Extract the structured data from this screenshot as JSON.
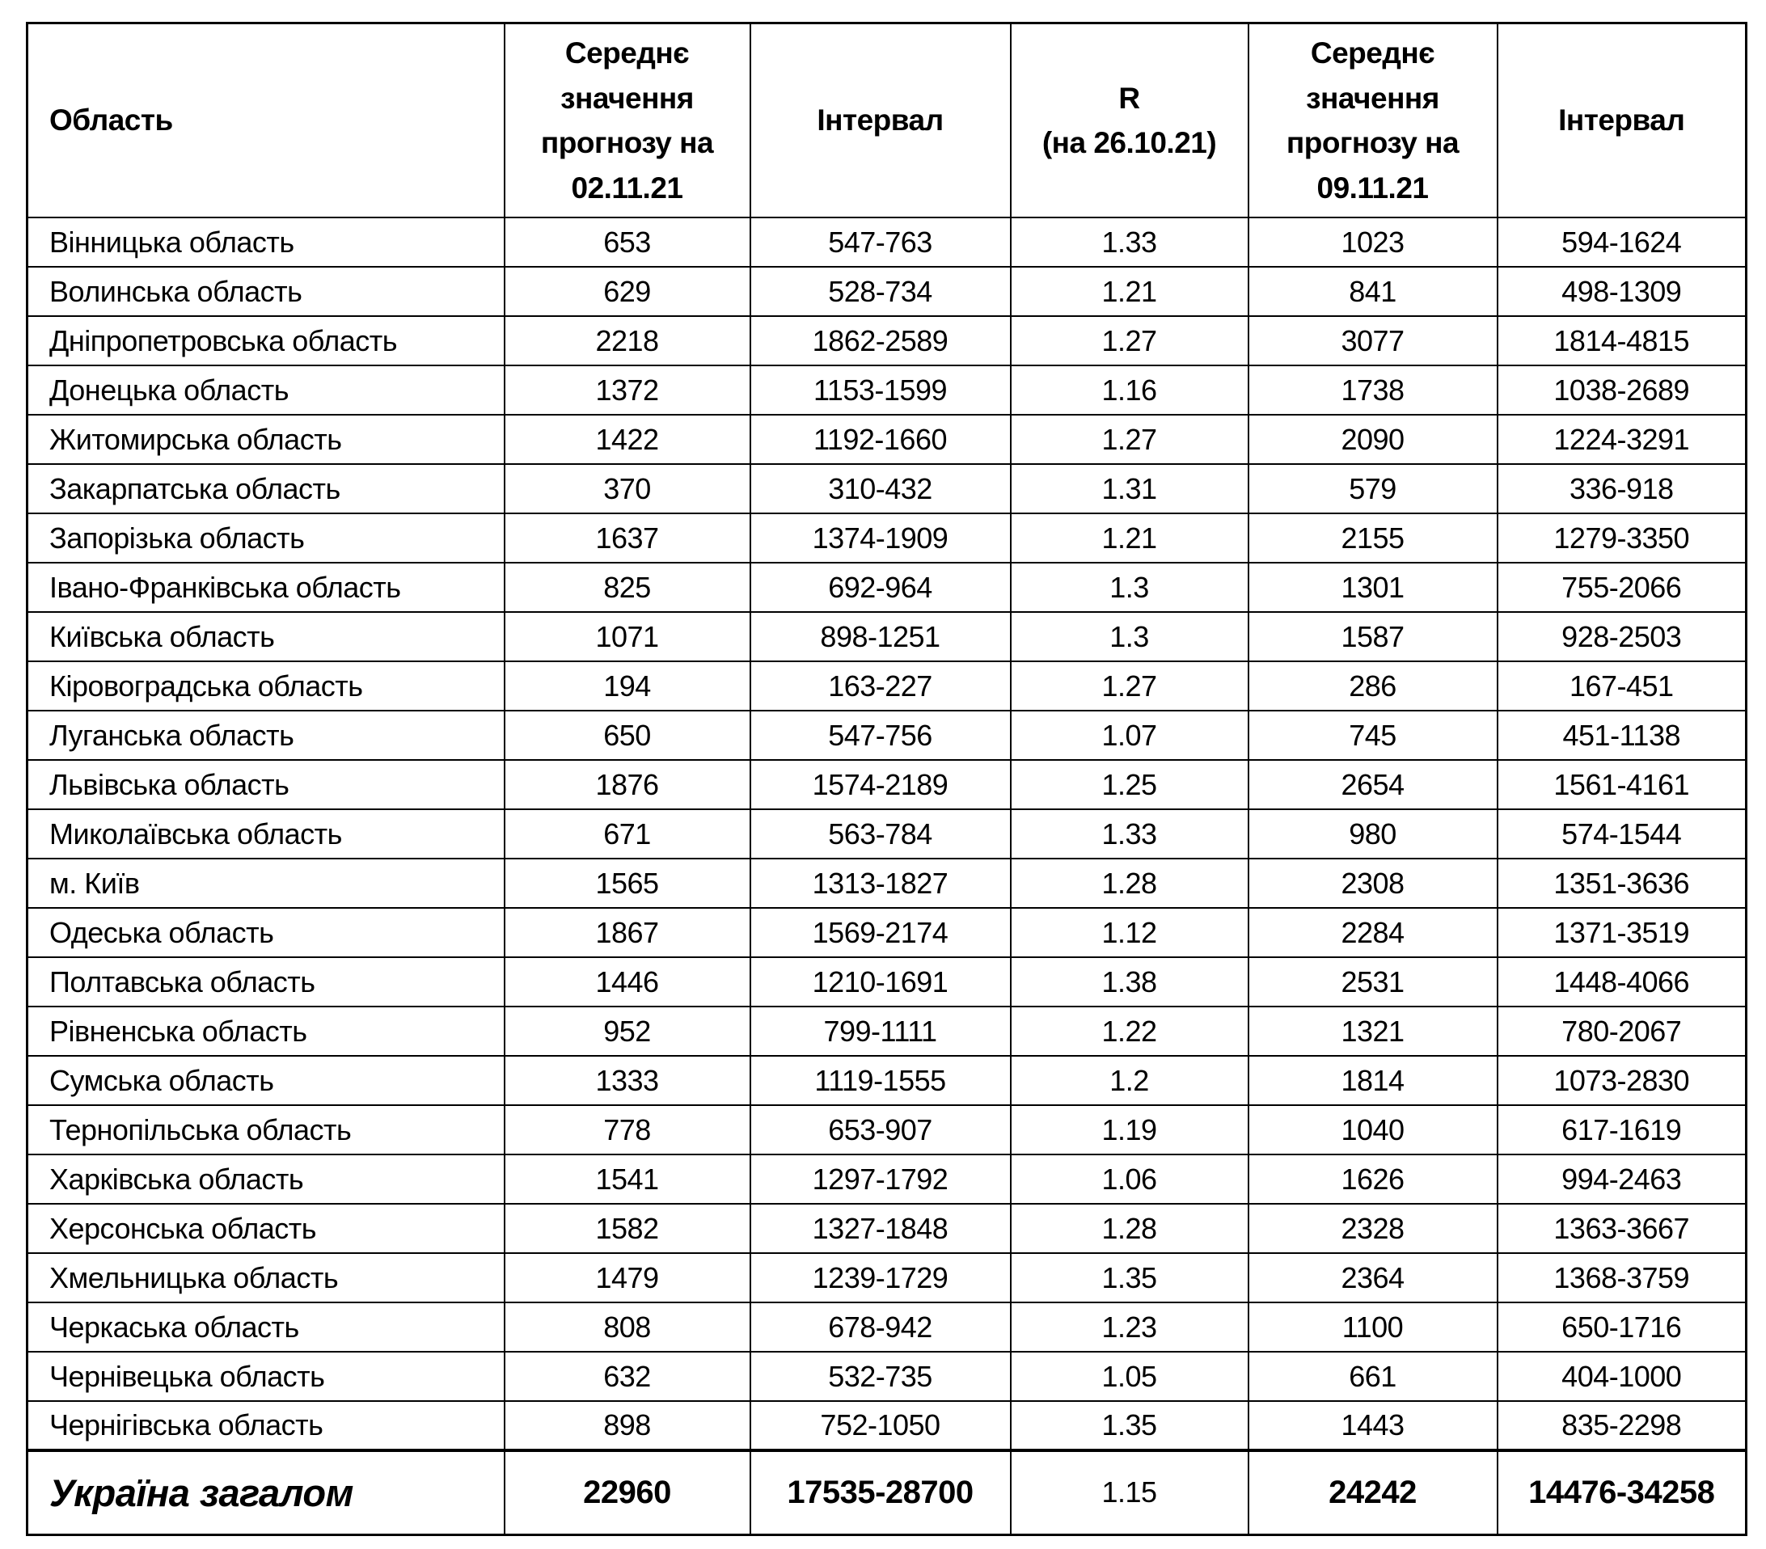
{
  "page": {
    "background_color": "#ffffff",
    "text_color": "#000000",
    "border_color": "#000000"
  },
  "table": {
    "headers": [
      "Область",
      "Середнє значення прогнозу на 02.11.21",
      "Інтервал",
      "R\n(на 26.10.21)",
      "Середнє значення прогнозу на 09.11.21",
      "Інтервал"
    ],
    "rows": [
      {
        "cells": [
          "Вінницька область",
          "653",
          "547-763",
          "1.33",
          "1023",
          "594-1624"
        ]
      },
      {
        "cells": [
          "Волинська область",
          "629",
          "528-734",
          "1.21",
          "841",
          "498-1309"
        ]
      },
      {
        "cells": [
          "Дніпропетровська область",
          "2218",
          "1862-2589",
          "1.27",
          "3077",
          "1814-4815"
        ]
      },
      {
        "cells": [
          "Донецька область",
          "1372",
          "1153-1599",
          "1.16",
          "1738",
          "1038-2689"
        ]
      },
      {
        "cells": [
          "Житомирська область",
          "1422",
          "1192-1660",
          "1.27",
          "2090",
          "1224-3291"
        ]
      },
      {
        "cells": [
          "Закарпатська область",
          "370",
          "310-432",
          "1.31",
          "579",
          "336-918"
        ]
      },
      {
        "cells": [
          "Запорізька область",
          "1637",
          "1374-1909",
          "1.21",
          "2155",
          "1279-3350"
        ]
      },
      {
        "cells": [
          "Івано-Франківська область",
          "825",
          "692-964",
          "1.3",
          "1301",
          "755-2066"
        ]
      },
      {
        "cells": [
          "Київська область",
          "1071",
          "898-1251",
          "1.3",
          "1587",
          "928-2503"
        ]
      },
      {
        "cells": [
          "Кіровоградська область",
          "194",
          "163-227",
          "1.27",
          "286",
          "167-451"
        ]
      },
      {
        "cells": [
          "Луганська область",
          "650",
          "547-756",
          "1.07",
          "745",
          "451-1138"
        ]
      },
      {
        "cells": [
          "Львівська область",
          "1876",
          "1574-2189",
          "1.25",
          "2654",
          "1561-4161"
        ]
      },
      {
        "cells": [
          "Миколаївська область",
          "671",
          "563-784",
          "1.33",
          "980",
          "574-1544"
        ]
      },
      {
        "cells": [
          "м. Київ",
          "1565",
          "1313-1827",
          "1.28",
          "2308",
          "1351-3636"
        ]
      },
      {
        "cells": [
          "Одеська область",
          "1867",
          "1569-2174",
          "1.12",
          "2284",
          "1371-3519"
        ]
      },
      {
        "cells": [
          "Полтавська область",
          "1446",
          "1210-1691",
          "1.38",
          "2531",
          "1448-4066"
        ]
      },
      {
        "cells": [
          "Рівненська область",
          "952",
          "799-1111",
          "1.22",
          "1321",
          "780-2067"
        ]
      },
      {
        "cells": [
          "Сумська область",
          "1333",
          "1119-1555",
          "1.2",
          "1814",
          "1073-2830"
        ]
      },
      {
        "cells": [
          "Тернопільська область",
          "778",
          "653-907",
          "1.19",
          "1040",
          "617-1619"
        ]
      },
      {
        "cells": [
          "Харківська область",
          "1541",
          "1297-1792",
          "1.06",
          "1626",
          "994-2463"
        ]
      },
      {
        "cells": [
          "Херсонська область",
          "1582",
          "1327-1848",
          "1.28",
          "2328",
          "1363-3667"
        ]
      },
      {
        "cells": [
          "Хмельницька область",
          "1479",
          "1239-1729",
          "1.35",
          "2364",
          "1368-3759"
        ]
      },
      {
        "cells": [
          "Черкаська область",
          "808",
          "678-942",
          "1.23",
          "1100",
          "650-1716"
        ]
      },
      {
        "cells": [
          "Чернівецька область",
          "632",
          "532-735",
          "1.05",
          "661",
          "404-1000"
        ]
      },
      {
        "cells": [
          "Чернігівська область",
          "898",
          "752-1050",
          "1.35",
          "1443",
          "835-2298"
        ]
      },
      {
        "cells": [
          "Україна загалом",
          "22960",
          "17535-28700",
          "1.15",
          "24242",
          "14476-34258"
        ],
        "is_total": true
      }
    ]
  }
}
